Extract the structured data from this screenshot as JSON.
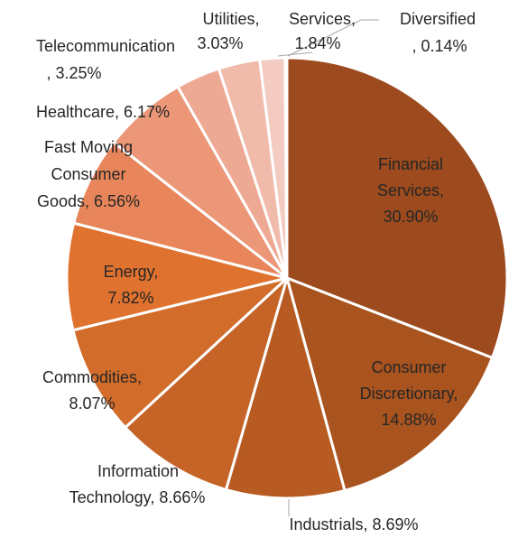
{
  "chart_data": {
    "type": "pie",
    "values": [
      30.9,
      14.88,
      8.69,
      8.66,
      8.07,
      7.82,
      6.56,
      6.17,
      3.25,
      3.03,
      1.84,
      0.14
    ],
    "labels": [
      [
        "Financial",
        "Services,",
        "30.90%"
      ],
      [
        "Consumer",
        "Discretionary,",
        "14.88%"
      ],
      [
        "Industrials, 8.69%"
      ],
      [
        "Information",
        "Technology, 8.66%"
      ],
      [
        "Commodities,",
        "8.07%"
      ],
      [
        "Energy,",
        "7.82%"
      ],
      [
        "Fast Moving",
        "Consumer",
        "Goods, 6.56%"
      ],
      [
        "Healthcare, 6.17%"
      ],
      [
        "Telecommunication",
        ", 3.25%"
      ],
      [
        "Utilities,",
        "3.03%"
      ],
      [
        "Services,",
        "1.84%"
      ],
      [
        "Diversified",
        ", 0.14%"
      ]
    ],
    "colors": [
      "#9c4a1e",
      "#a9531f",
      "#b75b22",
      "#c56426",
      "#d26c2a",
      "#e0722f",
      "#e8855a",
      "#eb9778",
      "#eea994",
      "#f1bbab",
      "#f4cbc0",
      "#f7dcd4"
    ]
  }
}
